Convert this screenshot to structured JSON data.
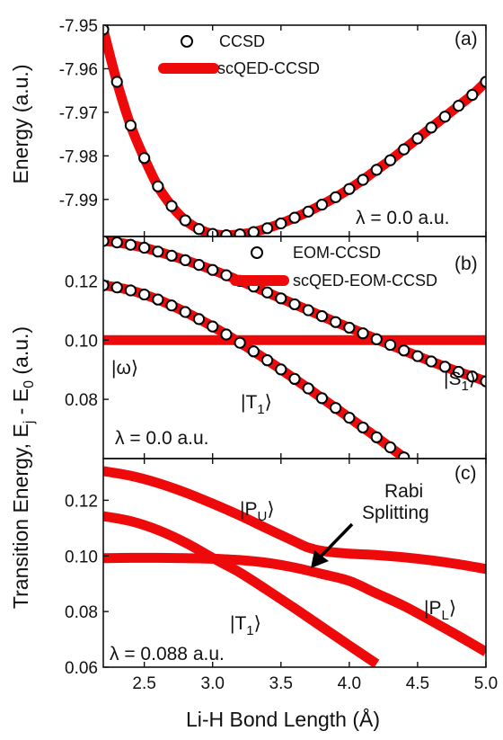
{
  "xlabel": "Li-H Bond Length (Å)",
  "ylabel_a": "Energy (a.u.)",
  "ylabel_bc": "Transition Energy, E_j - E_0 (a.u.)",
  "ylabel_bc_parts": {
    "main": "Transition Energy, E",
    "sub1": "j",
    "mid": " - E",
    "sub2": "0",
    "tail": " (a.u.)"
  },
  "colors": {
    "line": "#ee0a0a",
    "marker_face": "#ffffff",
    "marker_edge": "#000000"
  },
  "chart_data": [
    {
      "panel_label": "(a)",
      "type": "line",
      "xlim": [
        2.2,
        5.0
      ],
      "ylim": [
        -7.9985,
        -7.95
      ],
      "x_ticks": [
        "2.5",
        "3.0",
        "3.5",
        "4.0",
        "4.5",
        "5.0"
      ],
      "y_ticks": [
        "-7.95",
        "-7.96",
        "-7.97",
        "-7.98",
        "-7.99"
      ],
      "y_tick_values": [
        -7.95,
        -7.96,
        -7.97,
        -7.98,
        -7.99
      ],
      "annotation": "λ = 0.0 a.u.",
      "legend": [
        "CCSD",
        "scQED-CCSD"
      ],
      "series": [
        {
          "name": "scQED-CCSD",
          "style": "thick-line",
          "x": [
            2.2,
            2.3,
            2.4,
            2.5,
            2.6,
            2.7,
            2.8,
            2.9,
            3.0,
            3.1,
            3.2,
            3.3,
            3.4,
            3.5,
            3.6,
            3.7,
            3.8,
            3.9,
            4.0,
            4.1,
            4.2,
            4.3,
            4.4,
            4.5,
            4.6,
            4.7,
            4.8,
            4.9,
            5.0
          ],
          "y": [
            -7.951,
            -7.963,
            -7.973,
            -7.9805,
            -7.987,
            -7.9915,
            -7.9948,
            -7.9968,
            -7.9979,
            -7.9982,
            -7.998,
            -7.9975,
            -7.9966,
            -7.9955,
            -7.9942,
            -7.9928,
            -7.9912,
            -7.9895,
            -7.9876,
            -7.9855,
            -7.9832,
            -7.981,
            -7.9785,
            -7.976,
            -7.9735,
            -7.971,
            -7.9685,
            -7.966,
            -7.963
          ]
        },
        {
          "name": "CCSD",
          "style": "open-circles",
          "x": [
            2.2,
            2.3,
            2.4,
            2.5,
            2.6,
            2.7,
            2.8,
            2.9,
            3.0,
            3.1,
            3.2,
            3.3,
            3.4,
            3.5,
            3.6,
            3.7,
            3.8,
            3.9,
            4.0,
            4.1,
            4.2,
            4.3,
            4.4,
            4.5,
            4.6,
            4.7,
            4.8,
            4.9,
            5.0
          ],
          "y": [
            -7.951,
            -7.963,
            -7.973,
            -7.9805,
            -7.987,
            -7.9915,
            -7.9948,
            -7.9968,
            -7.9979,
            -7.9982,
            -7.998,
            -7.9975,
            -7.9966,
            -7.9955,
            -7.9942,
            -7.9928,
            -7.9912,
            -7.9895,
            -7.9876,
            -7.9855,
            -7.9832,
            -7.981,
            -7.9785,
            -7.976,
            -7.9735,
            -7.971,
            -7.9685,
            -7.966,
            -7.963
          ]
        }
      ]
    },
    {
      "panel_label": "(b)",
      "type": "line",
      "xlim": [
        2.2,
        5.0
      ],
      "ylim": [
        0.06,
        0.135
      ],
      "x_ticks": [
        "2.5",
        "3.0",
        "3.5",
        "4.0",
        "4.5",
        "5.0"
      ],
      "y_ticks": [
        "0.12",
        "0.10",
        "0.08"
      ],
      "y_tick_values": [
        0.12,
        0.1,
        0.08
      ],
      "annotation": "λ = 0.0 a.u.",
      "legend": [
        "EOM-CCSD",
        "scQED-EOM-CCSD"
      ],
      "state_labels": {
        "omega": "|ω⟩",
        "T1": "|T",
        "T1_sub": "1",
        "S1": "|S",
        "S1_sub": "1",
        "close": "⟩"
      },
      "series": [
        {
          "name": "scQED-EOM-CCSD",
          "style": "thick-line",
          "curve": "photon",
          "x": [
            2.2,
            5.0
          ],
          "y": [
            0.1,
            0.1
          ]
        },
        {
          "name": "scQED-EOM-CCSD",
          "style": "thick-line",
          "curve": "S1",
          "x": [
            2.2,
            2.3,
            2.4,
            2.5,
            2.6,
            2.7,
            2.8,
            2.9,
            3.0,
            3.1,
            3.2,
            3.3,
            3.4,
            3.5,
            3.6,
            3.7,
            3.8,
            3.9,
            4.0,
            4.1,
            4.2,
            4.3,
            4.4,
            4.5,
            4.6,
            4.7,
            4.8,
            4.9,
            5.0
          ],
          "y": [
            0.1335,
            0.133,
            0.1322,
            0.1312,
            0.1299,
            0.1285,
            0.127,
            0.1254,
            0.1237,
            0.1219,
            0.12,
            0.1181,
            0.1161,
            0.1141,
            0.1121,
            0.1101,
            0.1081,
            0.1061,
            0.1042,
            0.1023,
            0.1003,
            0.0984,
            0.0965,
            0.0946,
            0.0928,
            0.091,
            0.0893,
            0.0877,
            0.0861
          ]
        },
        {
          "name": "scQED-EOM-CCSD",
          "style": "thick-line",
          "curve": "T1",
          "x": [
            2.2,
            2.3,
            2.4,
            2.5,
            2.6,
            2.7,
            2.8,
            2.9,
            3.0,
            3.1,
            3.2,
            3.3,
            3.4,
            3.5,
            3.6,
            3.7,
            3.8,
            3.9,
            4.0,
            4.1,
            4.2,
            4.3,
            4.4
          ],
          "y": [
            0.1185,
            0.1178,
            0.1168,
            0.1154,
            0.1137,
            0.1117,
            0.1095,
            0.1071,
            0.1046,
            0.1019,
            0.0991,
            0.0962,
            0.0932,
            0.0901,
            0.0869,
            0.0837,
            0.0804,
            0.0771,
            0.0738,
            0.0705,
            0.0672,
            0.0638,
            0.0604
          ]
        },
        {
          "name": "EOM-CCSD",
          "style": "open-circles",
          "curve": "S1",
          "x": [
            2.2,
            2.3,
            2.4,
            2.5,
            2.6,
            2.7,
            2.8,
            2.9,
            3.0,
            3.1,
            3.2,
            3.3,
            3.4,
            3.5,
            3.6,
            3.7,
            3.8,
            3.9,
            4.0,
            4.1,
            4.2,
            4.3,
            4.4,
            4.5,
            4.6,
            4.7,
            4.8,
            4.9,
            5.0
          ],
          "y": [
            0.1335,
            0.133,
            0.1322,
            0.1312,
            0.1299,
            0.1285,
            0.127,
            0.1254,
            0.1237,
            0.1219,
            0.12,
            0.1181,
            0.1161,
            0.1141,
            0.1121,
            0.1101,
            0.1081,
            0.1061,
            0.1042,
            0.1023,
            0.1003,
            0.0984,
            0.0965,
            0.0946,
            0.0928,
            0.091,
            0.0893,
            0.0877,
            0.0861
          ]
        },
        {
          "name": "EOM-CCSD",
          "style": "open-circles",
          "curve": "T1",
          "x": [
            2.2,
            2.3,
            2.4,
            2.5,
            2.6,
            2.7,
            2.8,
            2.9,
            3.0,
            3.1,
            3.2,
            3.3,
            3.4,
            3.5,
            3.6,
            3.7,
            3.8,
            3.9,
            4.0,
            4.1,
            4.2,
            4.3,
            4.4
          ],
          "y": [
            0.1185,
            0.1178,
            0.1168,
            0.1154,
            0.1137,
            0.1117,
            0.1095,
            0.1071,
            0.1046,
            0.1019,
            0.0991,
            0.0962,
            0.0932,
            0.0901,
            0.0869,
            0.0837,
            0.0804,
            0.0771,
            0.0738,
            0.0705,
            0.0672,
            0.0638,
            0.0604
          ]
        }
      ]
    },
    {
      "panel_label": "(c)",
      "type": "line",
      "xlim": [
        2.2,
        5.0
      ],
      "ylim": [
        0.06,
        0.135
      ],
      "x_ticks": [
        "2.5",
        "3.0",
        "3.5",
        "4.0",
        "4.5",
        "5.0"
      ],
      "y_ticks": [
        "0.12",
        "0.10",
        "0.08",
        "0.06"
      ],
      "y_tick_values": [
        0.12,
        0.1,
        0.08,
        0.06
      ],
      "annotation": "λ = 0.088 a.u.",
      "arrow_label_line1": "Rabi",
      "arrow_label_line2": "Splitting",
      "state_labels": {
        "PU": "|P",
        "PU_sub": "U",
        "PL": "|P",
        "PL_sub": "L",
        "T1": "|T",
        "T1_sub": "1",
        "close": "⟩"
      },
      "series": [
        {
          "name": "P_U",
          "style": "thick-line",
          "x": [
            2.2,
            2.4,
            2.6,
            2.8,
            3.0,
            3.2,
            3.4,
            3.6,
            3.7,
            3.8,
            4.0,
            4.2,
            4.4,
            4.6,
            4.8,
            5.0
          ],
          "y": [
            0.1305,
            0.1288,
            0.1262,
            0.1228,
            0.1188,
            0.1145,
            0.1098,
            0.1052,
            0.103,
            0.1018,
            0.1008,
            0.1003,
            0.0995,
            0.0984,
            0.097,
            0.0953
          ]
        },
        {
          "name": "P_L",
          "style": "thick-line",
          "x": [
            2.2,
            2.4,
            2.6,
            2.8,
            3.0,
            3.2,
            3.4,
            3.6,
            3.8,
            4.0,
            4.2,
            4.4,
            4.6,
            4.8,
            5.0
          ],
          "y": [
            0.0992,
            0.0993,
            0.0993,
            0.0992,
            0.099,
            0.0985,
            0.0975,
            0.0958,
            0.0935,
            0.091,
            0.0865,
            0.082,
            0.0767,
            0.0712,
            0.0655
          ]
        },
        {
          "name": "T_1",
          "style": "thick-line",
          "x": [
            2.2,
            2.4,
            2.6,
            2.8,
            3.0,
            3.2,
            3.4,
            3.6,
            3.8,
            4.0,
            4.2
          ],
          "y": [
            0.1143,
            0.1125,
            0.1093,
            0.1048,
            0.0993,
            0.094,
            0.0877,
            0.0812,
            0.0745,
            0.0678,
            0.0612
          ]
        }
      ]
    }
  ]
}
